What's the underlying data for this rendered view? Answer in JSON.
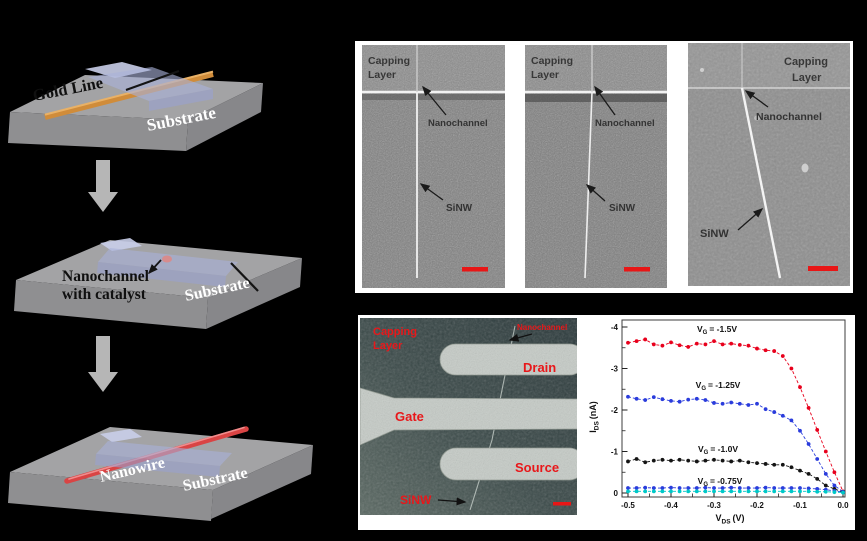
{
  "colors": {
    "background": "#000000",
    "panel_bg": "#ffffff",
    "scalebar_red": "#e81616",
    "label_red": "#e8171a",
    "gold": "#d08c3a",
    "nanowire": "#d94444",
    "capping_blue": "#a9b1d9",
    "substrate_gray": "#a3a3a5",
    "flow_arrow_gray": "#b6b6b6"
  },
  "schematic": {
    "step1": {
      "gold": "Gold Line",
      "substrate": "Substrate"
    },
    "step2": {
      "channel1": "Nanochannel",
      "channel2": "with catalyst",
      "substrate": "Substrate"
    },
    "step3": {
      "nanowire": "Nanowire",
      "substrate": "Substrate"
    }
  },
  "sem_images": [
    {
      "capping1": "Capping",
      "capping2": "Layer",
      "nanochannel": "Nanochannel",
      "sinw": "SiNW"
    },
    {
      "capping1": "Capping",
      "capping2": "Layer",
      "nanochannel": "Nanochannel",
      "sinw": "SiNW"
    },
    {
      "capping1": "Capping",
      "capping2": "Layer",
      "nanochannel": "Nanochannel",
      "sinw": "SiNW"
    }
  ],
  "device": {
    "capping1": "Capping",
    "capping2": "Layer",
    "nanochannel": "Nanochannel",
    "drain": "Drain",
    "gate": "Gate",
    "source": "Source",
    "sinw": "SiNW"
  },
  "chart_data": {
    "type": "line",
    "xlabel_parts": {
      "sym": "V",
      "sub": "DS",
      "unit": "(V)"
    },
    "ylabel_parts": {
      "sym": "I",
      "sub": "DS",
      "unit": "(nA)"
    },
    "vg_prefix": {
      "sym": "V",
      "sub": "G",
      "eq": "="
    },
    "xlim": [
      -0.5,
      0
    ],
    "ylim": [
      0,
      -4
    ],
    "x_ticks": [
      -0.5,
      -0.4,
      -0.3,
      -0.2,
      -0.1,
      0
    ],
    "x_tick_labels": [
      "-0.5",
      "-0.4",
      "-0.3",
      "-0.2",
      "-0.1",
      "0.0"
    ],
    "y_ticks": [
      0,
      -1,
      -2,
      -3,
      -4
    ],
    "y_tick_labels": [
      "0",
      "-1",
      "-2",
      "-3",
      "-4"
    ],
    "grid": false,
    "legend_position": "inline-labels",
    "x": [
      -0.5,
      -0.48,
      -0.46,
      -0.44,
      -0.42,
      -0.4,
      -0.38,
      -0.36,
      -0.34,
      -0.32,
      -0.3,
      -0.28,
      -0.26,
      -0.24,
      -0.22,
      -0.2,
      -0.18,
      -0.16,
      -0.14,
      -0.12,
      -0.1,
      -0.08,
      -0.06,
      -0.04,
      -0.02,
      0
    ],
    "series": [
      {
        "name": "VG-1.5V",
        "label_value": "-1.5V",
        "color": "#e8001c",
        "values": [
          -3.62,
          -3.66,
          -3.7,
          -3.58,
          -3.55,
          -3.63,
          -3.56,
          -3.52,
          -3.6,
          -3.58,
          -3.66,
          -3.58,
          -3.6,
          -3.57,
          -3.55,
          -3.48,
          -3.44,
          -3.42,
          -3.3,
          -3.0,
          -2.55,
          -2.05,
          -1.52,
          -1.0,
          -0.5,
          -0.04
        ]
      },
      {
        "name": "VG-1.25V",
        "label_value": "-1.25V",
        "color": "#2a3cdc",
        "values": [
          -2.32,
          -2.27,
          -2.24,
          -2.31,
          -2.26,
          -2.22,
          -2.2,
          -2.25,
          -2.27,
          -2.24,
          -2.17,
          -2.15,
          -2.18,
          -2.15,
          -2.12,
          -2.15,
          -2.02,
          -1.95,
          -1.86,
          -1.75,
          -1.5,
          -1.18,
          -0.82,
          -0.46,
          -0.18,
          -0.03
        ]
      },
      {
        "name": "VG-1.0V",
        "label_value": "-1.0V",
        "color": "#141414",
        "values": [
          -0.76,
          -0.82,
          -0.74,
          -0.78,
          -0.8,
          -0.78,
          -0.8,
          -0.78,
          -0.76,
          -0.78,
          -0.8,
          -0.78,
          -0.76,
          -0.78,
          -0.74,
          -0.72,
          -0.7,
          -0.68,
          -0.68,
          -0.62,
          -0.54,
          -0.46,
          -0.34,
          -0.18,
          -0.1,
          -0.02
        ]
      },
      {
        "name": "VG-0.75V",
        "label_value": "-0.75V",
        "color": "#2a3cdc",
        "values": [
          -0.12,
          -0.12,
          -0.13,
          -0.12,
          -0.12,
          -0.13,
          -0.12,
          -0.12,
          -0.12,
          -0.13,
          -0.12,
          -0.12,
          -0.13,
          -0.12,
          -0.12,
          -0.12,
          -0.13,
          -0.12,
          -0.12,
          -0.12,
          -0.12,
          -0.11,
          -0.1,
          -0.08,
          -0.05,
          -0.02
        ]
      },
      {
        "name": "unlabeled-cyan",
        "label_value": "",
        "color": "#00c8c8",
        "values": [
          -0.04,
          -0.04,
          -0.04,
          -0.04,
          -0.04,
          -0.04,
          -0.04,
          -0.04,
          -0.04,
          -0.04,
          -0.04,
          -0.04,
          -0.04,
          -0.04,
          -0.04,
          -0.04,
          -0.04,
          -0.04,
          -0.04,
          -0.04,
          -0.04,
          -0.04,
          -0.03,
          -0.03,
          -0.02,
          -0.01
        ]
      }
    ]
  }
}
